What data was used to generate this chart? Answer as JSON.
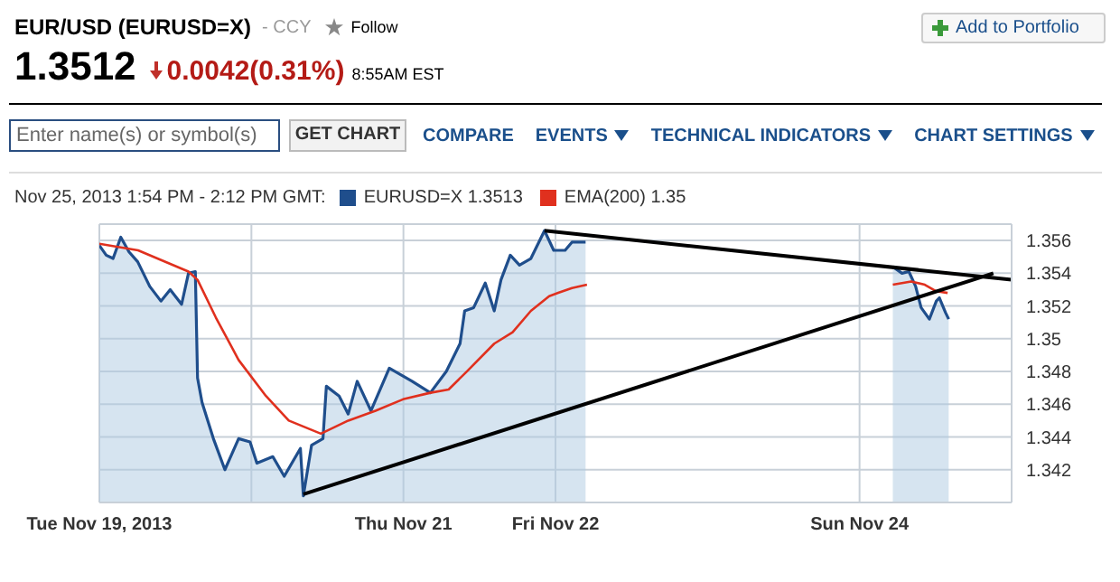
{
  "chart_data": {
    "type": "area",
    "title": "EUR/USD (EURUSD=X)",
    "annotations": [
      "- CCY",
      "Follow",
      "Add to Portfolio",
      "1.3512",
      "0.0042(0.31%)",
      "8:55AM EST",
      "Enter name(s) or symbol(s)",
      "GET CHART",
      "COMPARE",
      "EVENTS",
      "TECHNICAL INDICATORS",
      "CHART SETTINGS"
    ],
    "legend_title": "Nov 25, 2013 1:54 PM - 2:12 PM GMT:",
    "legend": "top left",
    "grid": true,
    "xlim": [
      "2013-11-19T00:00",
      "2013-11-25T00:00"
    ],
    "xticks": [
      {
        "value": "2013-11-19",
        "label": "Tue Nov 19, 2013"
      },
      {
        "value": "2013-11-20",
        "label": null
      },
      {
        "value": "2013-11-21",
        "label": "Thu Nov 21"
      },
      {
        "value": "2013-11-22",
        "label": "Fri Nov 22"
      },
      {
        "value": "2013-11-24",
        "label": "Sun Nov 24"
      }
    ],
    "ylim": [
      1.34,
      1.357
    ],
    "yticks": [
      1.342,
      1.344,
      1.346,
      1.348,
      1.35,
      1.352,
      1.354,
      1.356
    ],
    "series": [
      {
        "name": "EURUSD=X 1.3513",
        "color": "#1f4e8c",
        "x": [
          "2013-11-19T00:00",
          "2013-11-19T01:05",
          "2013-11-19T02:10",
          "2013-11-19T03:23",
          "2013-11-19T04:41",
          "2013-11-19T06:03",
          "2013-11-19T07:57",
          "2013-11-19T09:43",
          "2013-11-19T11:11",
          "2013-11-19T12:59",
          "2013-11-19T14:04",
          "2013-11-19T15:09",
          "2013-11-19T15:30",
          "2013-11-19T16:13",
          "2013-11-19T18:00",
          "2013-11-19T19:49",
          "2013-11-19T21:59",
          "2013-11-19T23:47",
          "2013-11-20T00:52",
          "2013-11-20T03:23",
          "2013-11-20T05:11",
          "2013-11-20T07:44",
          "2013-11-20T08:12",
          "2013-11-20T09:30",
          "2013-11-20T11:18",
          "2013-11-20T11:50",
          "2013-11-20T13:51",
          "2013-11-20T15:17",
          "2013-11-20T16:42",
          "2013-11-20T18:52",
          "2013-11-20T21:46",
          "2013-11-21T01:22",
          "2013-11-21T04:15",
          "2013-11-21T06:46",
          "2013-11-21T08:56",
          "2013-11-21T09:40",
          "2013-11-21T11:05",
          "2013-11-21T12:55",
          "2013-11-21T14:20",
          "2013-11-21T15:24",
          "2013-11-21T16:52",
          "2013-11-21T18:19",
          "2013-11-21T20:07",
          "2013-11-21T22:16",
          "2013-11-21T23:43",
          "2013-11-22T01:31",
          "2013-11-22T02:36",
          "2013-11-22T04:45",
          "2013-11-23T00:00",
          "2013-11-24T05:15",
          "2013-11-24T06:42",
          "2013-11-24T07:47",
          "2013-11-24T08:51",
          "2013-11-24T09:43",
          "2013-11-24T11:01",
          "2013-11-24T12:07",
          "2013-11-24T12:36",
          "2013-11-24T13:34",
          "2013-11-24T14:04"
        ],
        "values": [
          1.3557,
          1.3551,
          1.3549,
          1.3562,
          1.3553,
          1.3547,
          1.3532,
          1.3523,
          1.353,
          1.3521,
          1.354,
          1.3541,
          1.3476,
          1.3461,
          1.3439,
          1.342,
          1.3439,
          1.3437,
          1.3424,
          1.3428,
          1.3416,
          1.3433,
          1.3404,
          1.3435,
          1.3439,
          1.3471,
          1.3465,
          1.3454,
          1.3474,
          1.3456,
          1.3482,
          1.3474,
          1.3467,
          1.348,
          1.3497,
          1.3517,
          1.3519,
          1.3534,
          1.3517,
          1.3536,
          1.3551,
          1.3545,
          1.3549,
          1.3566,
          1.3554,
          1.3554,
          1.3559,
          1.3559,
          null,
          1.3544,
          1.354,
          1.3541,
          1.3532,
          1.3519,
          1.3512,
          1.3523,
          1.3525,
          1.3516,
          1.3512
        ]
      },
      {
        "name": "EMA(200) 1.35",
        "type": "line",
        "color": "#e0301e",
        "x": [
          "2013-11-19T00:00",
          "2013-11-19T06:07",
          "2013-11-19T14:04",
          "2013-11-19T15:30",
          "2013-11-19T18:23",
          "2013-11-19T21:59",
          "2013-11-20T02:18",
          "2013-11-20T05:54",
          "2013-11-20T10:58",
          "2013-11-20T15:17",
          "2013-11-20T19:36",
          "2013-11-20T23:56",
          "2013-11-21T04:15",
          "2013-11-21T07:08",
          "2013-11-21T10:00",
          "2013-11-21T14:20",
          "2013-11-21T17:14",
          "2013-11-21T20:07",
          "2013-11-21T23:00",
          "2013-11-22T00:26",
          "2013-11-22T02:36",
          "2013-11-22T04:58",
          "2013-11-23T00:00",
          "2013-11-24T05:15",
          "2013-11-24T08:08",
          "2013-11-24T10:18",
          "2013-11-24T12:07",
          "2013-11-24T13:54"
        ],
        "values": [
          1.3558,
          1.3554,
          1.3541,
          1.3536,
          1.3513,
          1.3487,
          1.3465,
          1.345,
          1.3442,
          1.345,
          1.3456,
          1.3463,
          1.3467,
          1.3469,
          1.348,
          1.3497,
          1.3504,
          1.3517,
          1.3526,
          1.3528,
          1.3531,
          1.3533,
          null,
          1.3533,
          1.3535,
          1.3533,
          1.3529,
          1.3528
        ]
      },
      {
        "type": "line",
        "color": "#000000",
        "x": [
          "2013-11-20T08:12",
          "2013-11-24T21:07"
        ],
        "values": [
          1.3405,
          1.354
        ]
      },
      {
        "type": "line",
        "color": "#000000",
        "x": [
          "2013-11-21T22:16",
          "2013-11-25T00:00"
        ],
        "values": [
          1.3566,
          1.3536
        ]
      }
    ]
  }
}
